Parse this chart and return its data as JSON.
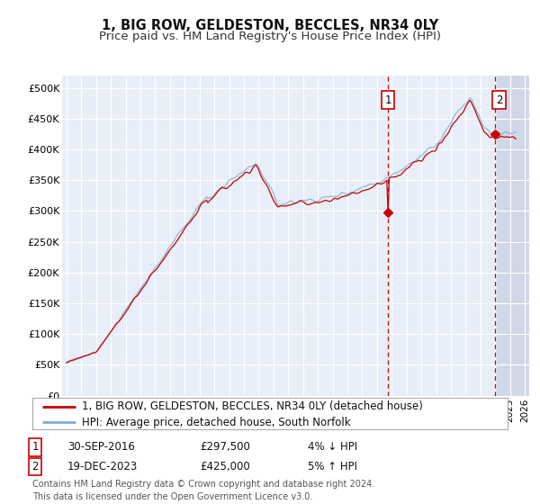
{
  "title": "1, BIG ROW, GELDESTON, BECCLES, NR34 0LY",
  "subtitle": "Price paid vs. HM Land Registry's House Price Index (HPI)",
  "ylim": [
    0,
    520000
  ],
  "yticks": [
    0,
    50000,
    100000,
    150000,
    200000,
    250000,
    300000,
    350000,
    400000,
    450000,
    500000
  ],
  "ytick_labels": [
    "£0",
    "£50K",
    "£100K",
    "£150K",
    "£200K",
    "£250K",
    "£300K",
    "£350K",
    "£400K",
    "£450K",
    "£500K"
  ],
  "xlim_start": 1994.7,
  "xlim_end": 2026.3,
  "hpi_color": "#7bafd4",
  "price_color": "#cc0000",
  "marker1_date": 2016.75,
  "marker1_price": 297500,
  "marker1_label": "1",
  "marker2_date": 2023.96,
  "marker2_price": 425000,
  "marker2_label": "2",
  "legend_line1": "1, BIG ROW, GELDESTON, BECCLES, NR34 0LY (detached house)",
  "legend_line2": "HPI: Average price, detached house, South Norfolk",
  "marker1_date_str": "30-SEP-2016",
  "marker1_price_str": "£297,500",
  "marker1_hpi_str": "4% ↓ HPI",
  "marker2_date_str": "19-DEC-2023",
  "marker2_price_str": "£425,000",
  "marker2_hpi_str": "5% ↑ HPI",
  "footer": "Contains HM Land Registry data © Crown copyright and database right 2024.\nThis data is licensed under the Open Government Licence v3.0.",
  "background_color": "#ffffff",
  "plot_bg_color": "#e8eef7",
  "grid_color": "#ffffff",
  "future_bg_color": "#d0d8e8",
  "title_fontsize": 10.5,
  "subtitle_fontsize": 9.5,
  "tick_fontsize": 8,
  "legend_fontsize": 8.5,
  "footer_fontsize": 7,
  "annotation_fontsize": 8.5
}
